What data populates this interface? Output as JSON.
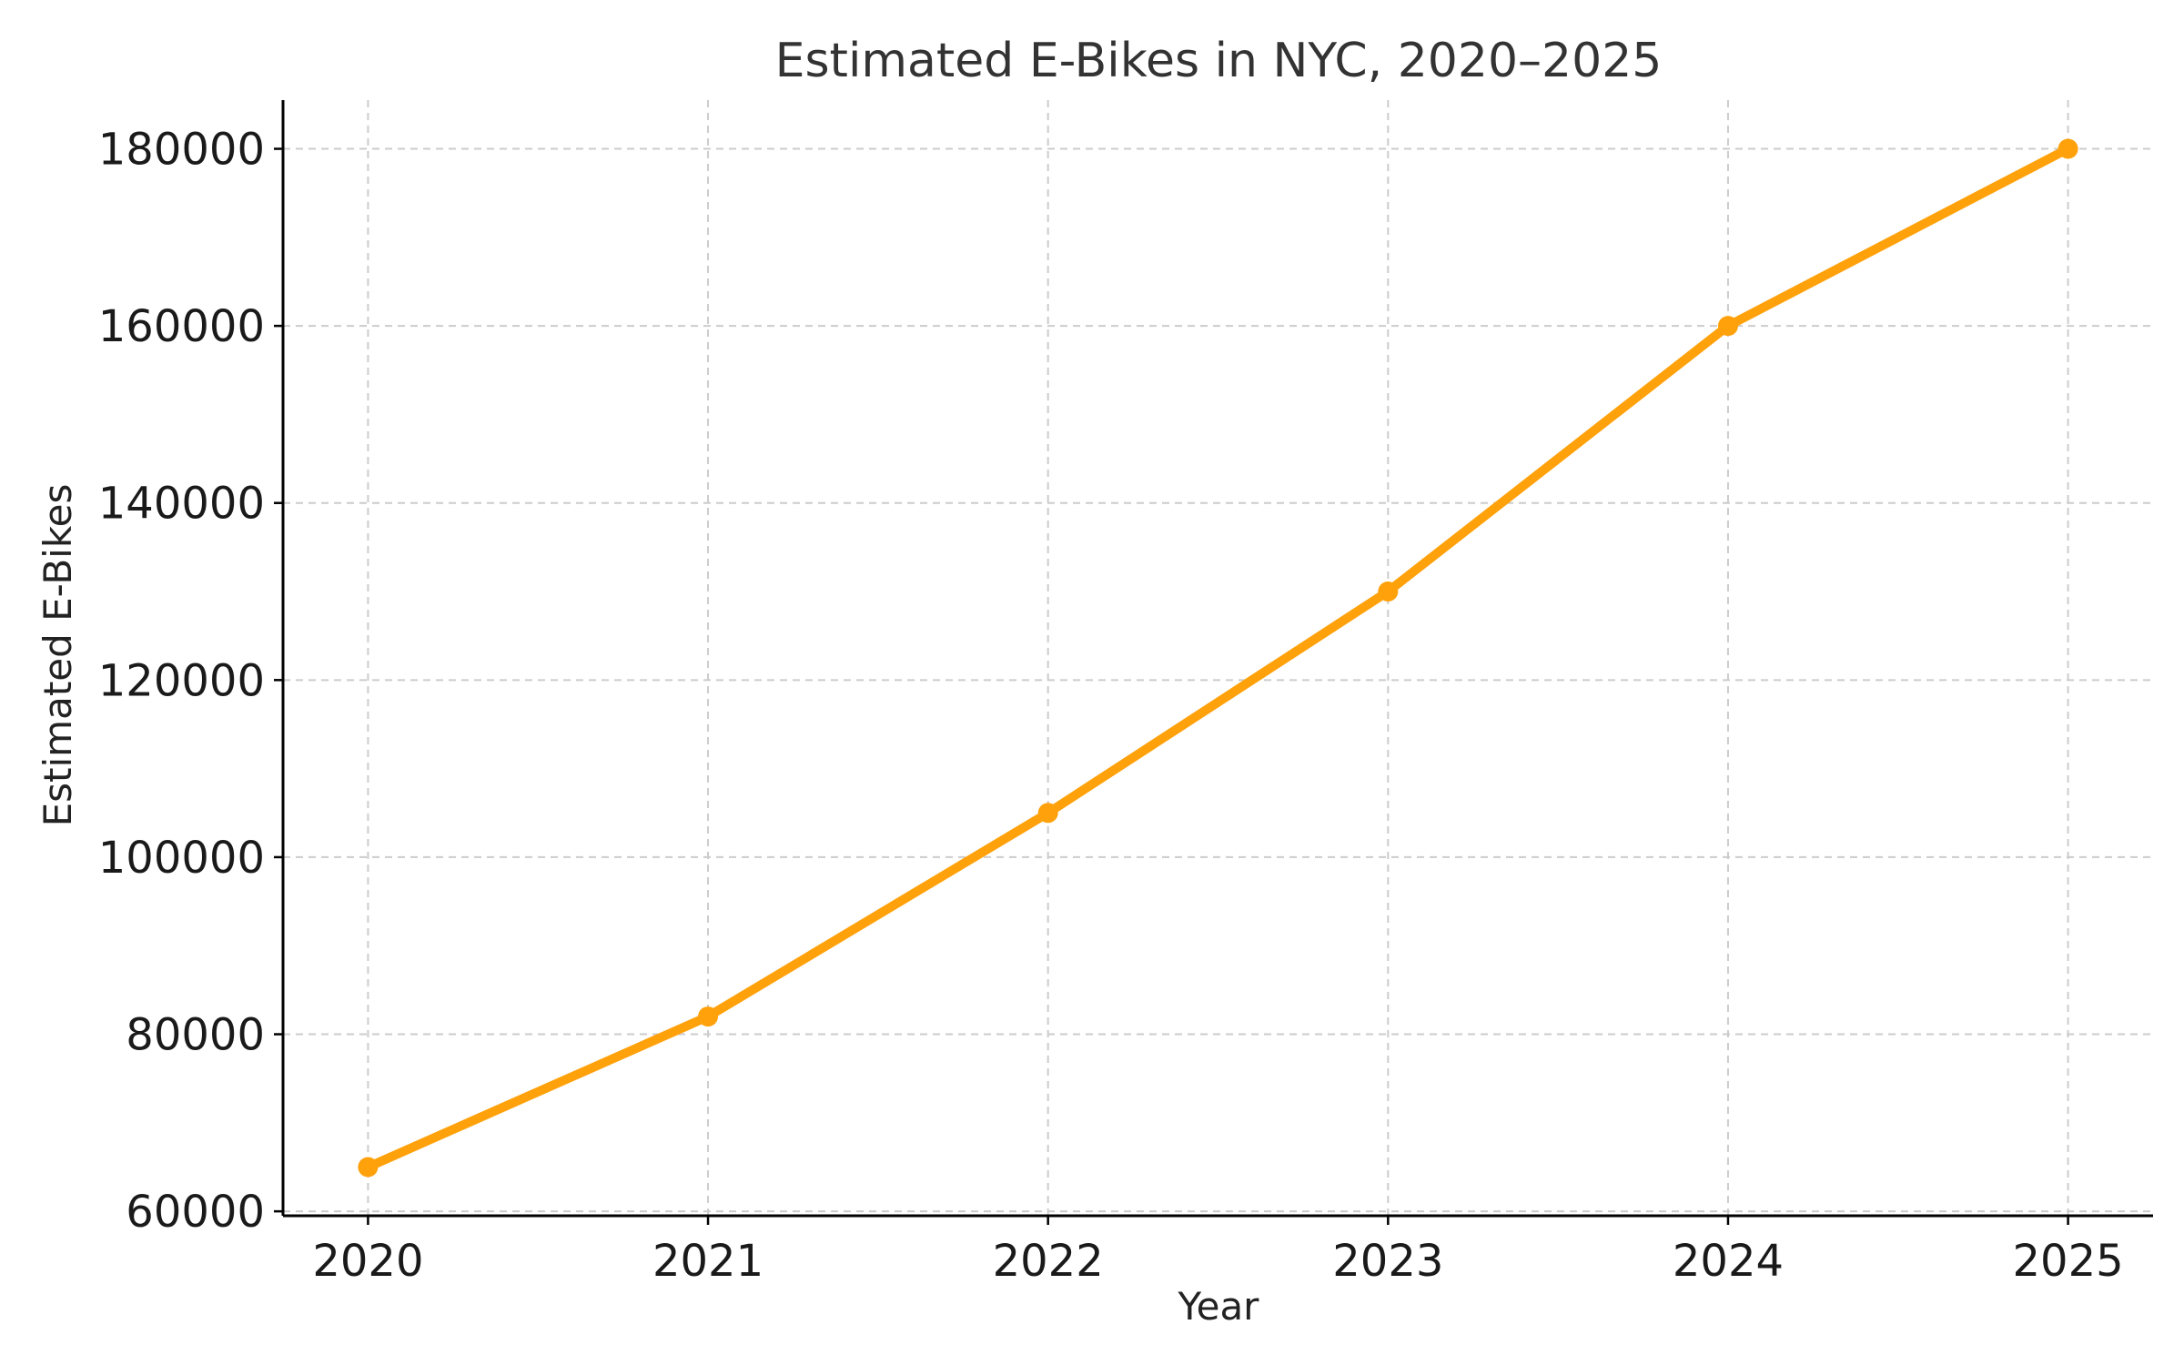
{
  "chart_data": {
    "type": "line",
    "title": "Estimated E-Bikes in NYC, 2020–2025",
    "xlabel": "Year",
    "ylabel": "Estimated E-Bikes",
    "x": [
      "2020",
      "2021",
      "2022",
      "2023",
      "2024",
      "2025"
    ],
    "series": [
      {
        "values": [
          65000,
          82000,
          105000,
          130000,
          160000,
          180000
        ]
      }
    ],
    "yticks": [
      60000,
      80000,
      100000,
      120000,
      140000,
      160000,
      180000
    ],
    "ylim": [
      59500,
      185500
    ],
    "xlim": [
      -0.25,
      5.25
    ],
    "grid": true,
    "legend": "none",
    "colors": {
      "line": "#FFA10A",
      "grid": "#CCCCCC",
      "axis": "#000000"
    }
  }
}
